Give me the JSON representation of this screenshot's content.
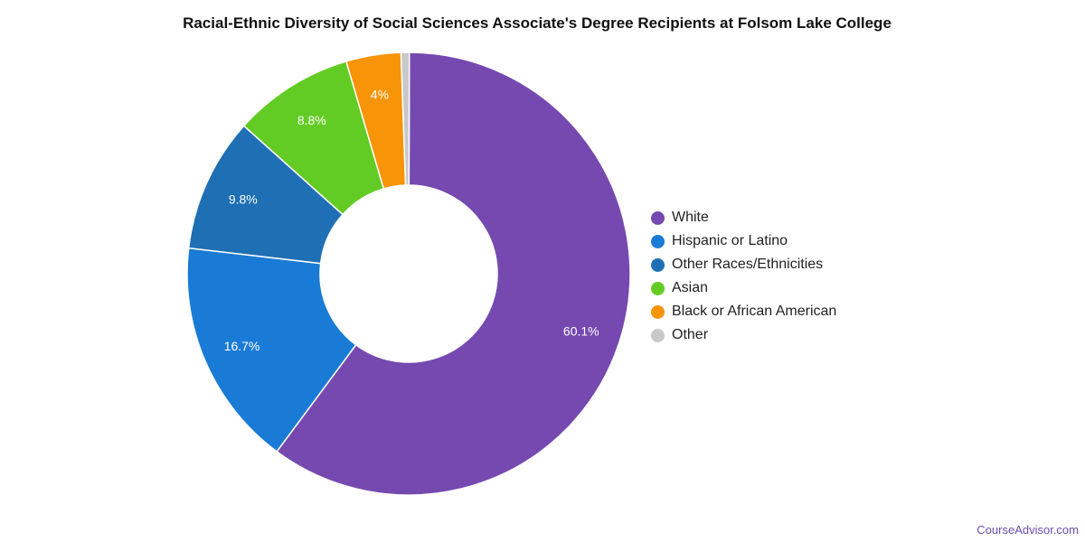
{
  "chart_data": {
    "type": "pie",
    "title": "Racial-Ethnic Diversity of Social Sciences Associate's Degree Recipients at Folsom Lake College",
    "legend_position": "right",
    "donut": true,
    "slices": [
      {
        "name": "White",
        "value": 60.1,
        "label": "60.1%",
        "color": "#7549b0"
      },
      {
        "name": "Hispanic or Latino",
        "value": 16.7,
        "label": "16.7%",
        "color": "#1a7bd6"
      },
      {
        "name": "Other Races/Ethnicities",
        "value": 9.8,
        "label": "9.8%",
        "color": "#1f6fb5"
      },
      {
        "name": "Asian",
        "value": 8.8,
        "label": "8.8%",
        "color": "#63cc24"
      },
      {
        "name": "Black or African American",
        "value": 4.0,
        "label": "4%",
        "color": "#f79407"
      },
      {
        "name": "Other",
        "value": 0.6,
        "label": "",
        "color": "#c8c8c8"
      }
    ]
  },
  "footer": {
    "brand": "CourseAdvisor.com"
  }
}
